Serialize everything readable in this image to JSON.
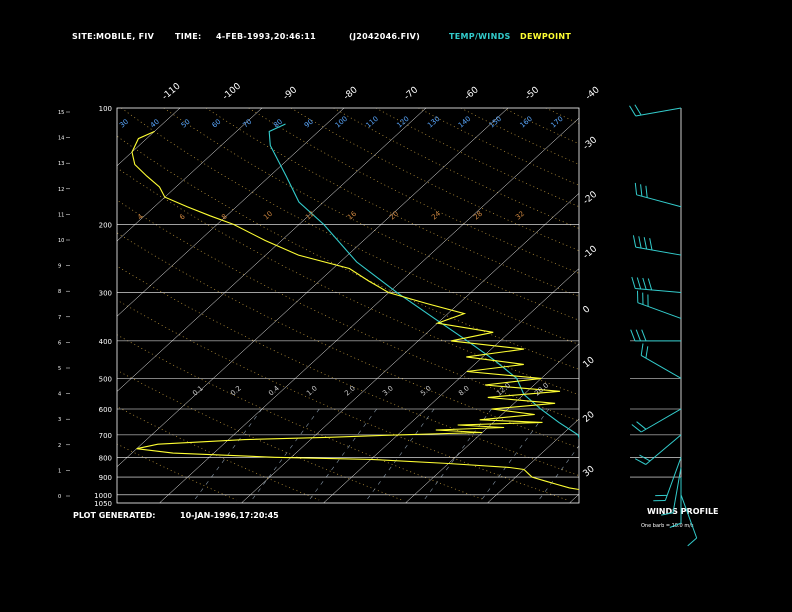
{
  "header": {
    "site_label": "SITE:",
    "site_value": "MOBILE, FIV",
    "time_label": "TIME:",
    "time_value": "4-FEB-1993,20:46:11",
    "file_value": "(J2042046.FIV)",
    "legend_temp": "TEMP/WINDS",
    "legend_dew": "DEWPOINT"
  },
  "footer": {
    "plot_label": "PLOT GENERATED:",
    "plot_value": "10-JAN-1996,17:20:45",
    "winds_title": "WINDS PROFILE",
    "winds_note": "One barb = 10.0 m/s"
  },
  "colors": {
    "temp": "#33cccc",
    "dewpoint": "#ffff33",
    "grid": "#ffffff",
    "background": "#000000"
  },
  "chart_data": {
    "type": "line",
    "title": "",
    "pressure_levels": [
      100,
      200,
      300,
      400,
      500,
      600,
      700,
      800,
      900,
      1000,
      1050
    ],
    "pressure_labels": [
      "100",
      "200",
      "300",
      "400",
      "500",
      "600",
      "700",
      "800",
      "900",
      "1000",
      "1050"
    ],
    "height_km_ticks": [
      "15",
      "14",
      "13",
      "12",
      "11",
      "10",
      "9",
      "8",
      "7",
      "6",
      "5",
      "4",
      "3",
      "2",
      "1",
      "0"
    ],
    "top_temp_labels": [
      "-110",
      "-100",
      "-90",
      "-80",
      "-70",
      "-60",
      "-50",
      "-40"
    ],
    "right_temp_labels": [
      "-30",
      "-20",
      "-10",
      "0",
      "10",
      "20",
      "30"
    ],
    "dry_adiabat_labels": [
      "30",
      "40",
      "50",
      "60",
      "70",
      "80",
      "90",
      "100",
      "110",
      "120",
      "130",
      "140",
      "150",
      "160",
      "170"
    ],
    "mixing_ratio_labels": [
      "4",
      "6",
      "8",
      "10",
      "12",
      "16",
      "20",
      "24",
      "28",
      "32"
    ],
    "lower_labels": [
      "0.1",
      "0.2",
      "0.4",
      "1.0",
      "2.0",
      "3.0",
      "5.0",
      "8.0",
      "12.0",
      "20.0"
    ],
    "series": [
      {
        "name": "TEMP/WINDS",
        "pressure": [
          1000,
          980,
          960,
          940,
          920,
          900,
          880,
          860,
          850,
          800,
          750,
          700,
          650,
          600,
          550,
          500,
          450,
          400,
          350,
          300,
          250,
          200,
          175,
          150,
          125,
          115,
          110
        ],
        "temperature": [
          14,
          14,
          12,
          10,
          9,
          8,
          9,
          10,
          10,
          6,
          4,
          2,
          -2,
          -6,
          -10,
          -13,
          -18,
          -24,
          -31,
          -39,
          -48,
          -57,
          -63,
          -68,
          -74,
          -76,
          -75
        ]
      },
      {
        "name": "DEWPOINT",
        "pressure": [
          1000,
          980,
          960,
          940,
          920,
          900,
          880,
          860,
          850,
          830,
          810,
          800,
          780,
          760,
          740,
          720,
          710,
          700,
          690,
          680,
          670,
          660,
          650,
          640,
          620,
          600,
          580,
          560,
          540,
          520,
          500,
          480,
          460,
          440,
          420,
          400,
          380,
          360,
          340,
          320,
          300,
          280,
          260,
          240,
          220,
          200,
          190,
          180,
          170,
          160,
          150,
          140,
          130,
          120,
          115
        ],
        "temperature": [
          12,
          11,
          8,
          6,
          4,
          2,
          1,
          0,
          -2,
          -10,
          -20,
          -32,
          -45,
          -50,
          -48,
          -38,
          -28,
          -20,
          -10,
          -16,
          -8,
          -14,
          -4,
          -12,
          -6,
          -12,
          -5,
          -14,
          -6,
          -16,
          -10,
          -20,
          -14,
          -22,
          -16,
          -26,
          -22,
          -30,
          -28,
          -34,
          -40,
          -44,
          -48,
          -56,
          -62,
          -68,
          -72,
          -76,
          -80,
          -82,
          -85,
          -88,
          -90,
          -91,
          -90
        ]
      }
    ],
    "winds": [
      {
        "pressure": 100,
        "speed": 15,
        "direction": 260
      },
      {
        "pressure": 180,
        "speed": 30,
        "direction": 285
      },
      {
        "pressure": 240,
        "speed": 35,
        "direction": 280
      },
      {
        "pressure": 300,
        "speed": 40,
        "direction": 275
      },
      {
        "pressure": 350,
        "speed": 30,
        "direction": 290
      },
      {
        "pressure": 400,
        "speed": 25,
        "direction": 270
      },
      {
        "pressure": 500,
        "speed": 20,
        "direction": 300
      },
      {
        "pressure": 600,
        "speed": 15,
        "direction": 240
      },
      {
        "pressure": 700,
        "speed": 20,
        "direction": 230
      },
      {
        "pressure": 800,
        "speed": 15,
        "direction": 200
      },
      {
        "pressure": 850,
        "speed": 12,
        "direction": 190
      },
      {
        "pressure": 900,
        "speed": 10,
        "direction": 180
      },
      {
        "pressure": 1000,
        "speed": 5,
        "direction": 160
      }
    ]
  }
}
